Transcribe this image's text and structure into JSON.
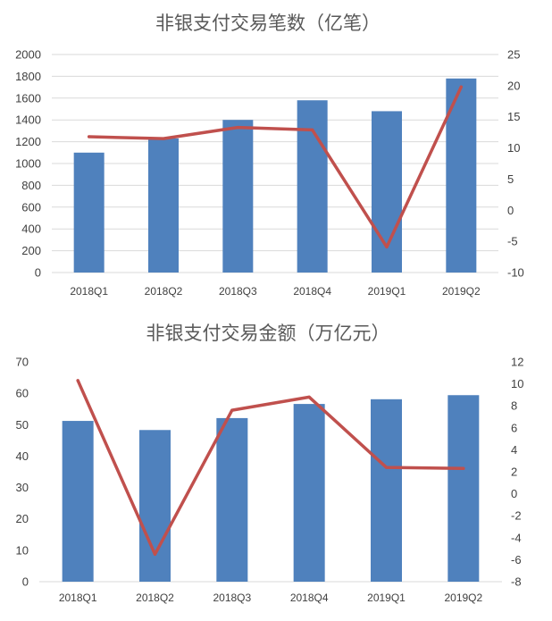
{
  "chart_data": [
    {
      "type": "bar+line",
      "title": "非银支付交易笔数（亿笔）",
      "categories": [
        "2018Q1",
        "2018Q2",
        "2018Q3",
        "2018Q4",
        "2019Q1",
        "2019Q2"
      ],
      "series": [
        {
          "kind": "bar",
          "axis": "left",
          "color": "#4f81bd",
          "values": [
            1100,
            1230,
            1400,
            1580,
            1480,
            1780
          ]
        },
        {
          "kind": "line",
          "axis": "right",
          "color": "#c0504d",
          "values": [
            11.8,
            11.5,
            13.3,
            12.9,
            -5.9,
            19.8
          ]
        }
      ],
      "left_axis": {
        "min": 0,
        "max": 2000,
        "ticks": [
          "0",
          "200",
          "400",
          "600",
          "800",
          "1000",
          "1200",
          "1400",
          "1600",
          "1800",
          "2000"
        ]
      },
      "right_axis": {
        "min": -10,
        "max": 25,
        "ticks": [
          "-10",
          "-5",
          "0",
          "5",
          "10",
          "15",
          "20",
          "25"
        ]
      },
      "grid": "horizontal",
      "legend": "none"
    },
    {
      "type": "bar+line",
      "title": "非银支付交易金额（万亿元）",
      "categories": [
        "2018Q1",
        "2018Q2",
        "2018Q3",
        "2018Q4",
        "2019Q1",
        "2019Q2"
      ],
      "series": [
        {
          "kind": "bar",
          "axis": "left",
          "color": "#4f81bd",
          "values": [
            51.2,
            48.3,
            52.1,
            56.6,
            58.1,
            59.4
          ]
        },
        {
          "kind": "line",
          "axis": "right",
          "color": "#c0504d",
          "values": [
            10.3,
            -5.5,
            7.6,
            8.8,
            2.4,
            2.3
          ]
        }
      ],
      "left_axis": {
        "min": 0,
        "max": 70,
        "ticks": [
          "0",
          "10",
          "20",
          "30",
          "40",
          "50",
          "60",
          "70"
        ]
      },
      "right_axis": {
        "min": -8,
        "max": 12,
        "ticks": [
          "-8",
          "-6",
          "-4",
          "-2",
          "0",
          "2",
          "4",
          "6",
          "8",
          "10",
          "12"
        ]
      },
      "grid": "none",
      "legend": "none"
    }
  ]
}
